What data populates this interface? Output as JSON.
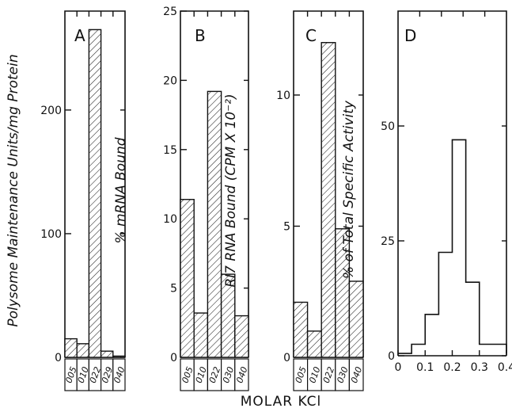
{
  "figure": {
    "xlabel": "MOLAR KCl"
  },
  "chart_data": [
    {
      "panel": "A",
      "type": "bar",
      "ylabel": "Polysome Maintenance Units/mg Protein",
      "ylim": [
        0,
        280
      ],
      "ytick_labels": [
        "0",
        "100",
        "200"
      ],
      "categories": [
        "0.05",
        "0.10",
        "0.22",
        "0.29",
        "0.40"
      ],
      "category_labels": [
        "005",
        "010",
        "022",
        "029",
        "040"
      ],
      "values": [
        15,
        11,
        265,
        5,
        1
      ]
    },
    {
      "panel": "B",
      "type": "bar",
      "ylabel": "% mRNA Bound",
      "ylim": [
        0,
        25
      ],
      "ytick_labels": [
        "0",
        "5",
        "10",
        "15",
        "20",
        "25"
      ],
      "categories": [
        "0.05",
        "0.10",
        "0.22",
        "0.30",
        "0.40"
      ],
      "category_labels": [
        "005",
        "010",
        "022",
        "030",
        "040"
      ],
      "values": [
        11.4,
        3.2,
        19.2,
        6.0,
        3.0
      ]
    },
    {
      "panel": "C",
      "type": "bar",
      "ylabel": "RI7 RNA Bound (CPM X 10⁻²)",
      "ylim": [
        0,
        13.2
      ],
      "ytick_labels": [
        "0",
        "5",
        "10"
      ],
      "categories": [
        "0.05",
        "0.10",
        "0.22",
        "0.30",
        "0.40"
      ],
      "category_labels": [
        "005",
        "010",
        "022",
        "030",
        "040"
      ],
      "values": [
        2.1,
        1.0,
        12.0,
        4.9,
        2.9
      ]
    },
    {
      "panel": "D",
      "type": "line",
      "style": "histogram-step",
      "ylabel": "% of Total Specific Activity",
      "xlim": [
        0,
        0.4
      ],
      "ylim": [
        0,
        75
      ],
      "xtick_labels": [
        "0",
        "0.1",
        "0.2",
        "0.3",
        "0.4"
      ],
      "ytick_labels": [
        "0",
        "25",
        "50"
      ],
      "bins": [
        0,
        0.05,
        0.1,
        0.15,
        0.2,
        0.25,
        0.3,
        0.4
      ],
      "values": [
        0.5,
        2.5,
        9,
        22.5,
        47,
        16,
        2.5,
        0.5
      ]
    }
  ]
}
